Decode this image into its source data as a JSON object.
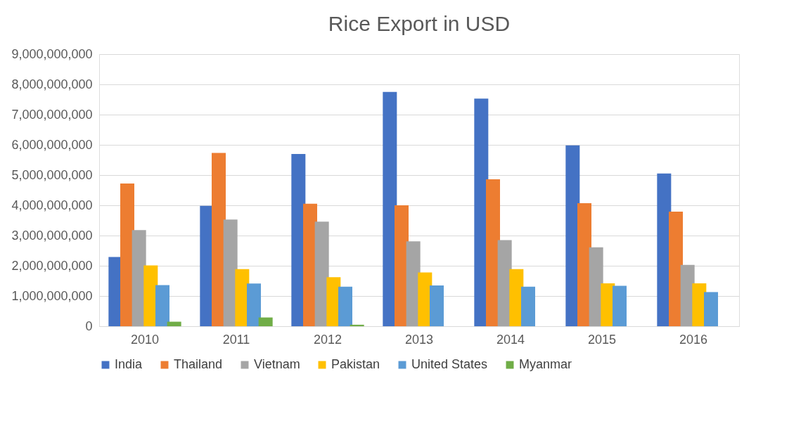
{
  "chart_data": {
    "type": "bar",
    "title": "Rice Export in USD",
    "categories": [
      "2010",
      "2011",
      "2012",
      "2013",
      "2014",
      "2015",
      "2016"
    ],
    "series": [
      {
        "name": "India",
        "color": "#4472c4",
        "values": [
          2290000000,
          3980000000,
          5700000000,
          7750000000,
          7530000000,
          5980000000,
          5050000000
        ]
      },
      {
        "name": "Thailand",
        "color": "#ed7d31",
        "values": [
          4720000000,
          5730000000,
          4050000000,
          4000000000,
          4860000000,
          4070000000,
          3790000000
        ]
      },
      {
        "name": "Vietnam",
        "color": "#a5a5a5",
        "values": [
          3180000000,
          3530000000,
          3460000000,
          2810000000,
          2850000000,
          2610000000,
          2030000000
        ]
      },
      {
        "name": "Pakistan",
        "color": "#ffc000",
        "values": [
          2010000000,
          1890000000,
          1620000000,
          1780000000,
          1890000000,
          1420000000,
          1420000000
        ]
      },
      {
        "name": "United States",
        "color": "#5b9bd5",
        "values": [
          1360000000,
          1410000000,
          1310000000,
          1350000000,
          1310000000,
          1340000000,
          1130000000
        ]
      },
      {
        "name": "Myanmar",
        "color": "#70ad47",
        "values": [
          150000000,
          290000000,
          50000000,
          null,
          null,
          null,
          null
        ]
      }
    ],
    "ylim": [
      0,
      9000000000
    ],
    "yticks": [
      0,
      {
        "value": 1000000000,
        "label": "1,000,000,000"
      },
      {
        "value": 2000000000,
        "label": "2,000,000,000"
      },
      {
        "value": 3000000000,
        "label": "3,000,000,000"
      },
      {
        "value": 4000000000,
        "label": "4,000,000,000"
      },
      {
        "value": 5000000000,
        "label": "5,000,000,000"
      },
      {
        "value": 6000000000,
        "label": "6,000,000,000"
      },
      {
        "value": 7000000000,
        "label": "7,000,000,000"
      },
      {
        "value": 8000000000,
        "label": "8,000,000,000"
      },
      {
        "value": 9000000000,
        "label": "9,000,000,000"
      }
    ],
    "grid": "y",
    "legend": "bottom"
  }
}
